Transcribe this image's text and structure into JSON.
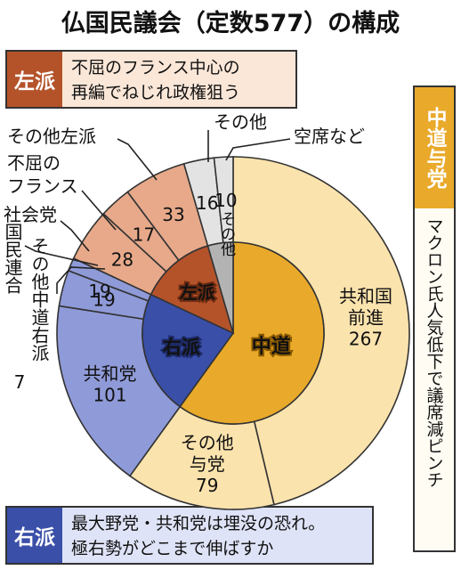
{
  "title": "仏国民議会（定数577）の構成",
  "left_note": {
    "tag": "左派",
    "lines": [
      "不屈のフランス中心の",
      "再編でねじれ政権狙う"
    ]
  },
  "right_note": {
    "tag": "右派",
    "lines": [
      "最大野党・共和党は埋没の恐れ。",
      "極右勢がどこまで伸ばすか"
    ]
  },
  "center_note": {
    "tag": "中道与党",
    "text": "マクロン氏人気低下で議席減ピンチ"
  },
  "colors": {
    "center": "#e9a92a",
    "center_light": "#fbe3ad",
    "left": "#b4532a",
    "left_light": "#e7a98a",
    "right": "#3a4fa8",
    "right_light": "#8f9ad8",
    "other": "#b3b3b3",
    "other_light": "#e3e3e3"
  },
  "chart_data": {
    "type": "pie",
    "total": 577,
    "inner": [
      {
        "name": "中道",
        "value": 346,
        "group": "center"
      },
      {
        "name": "右派",
        "value": 127,
        "group": "right"
      },
      {
        "name": "左派",
        "value": 78,
        "group": "left"
      },
      {
        "name": "その他",
        "value": 26,
        "group": "other"
      }
    ],
    "outer": [
      {
        "name": "共和国前進",
        "value": 267,
        "value_label": "267",
        "group": "center"
      },
      {
        "name": "その他与党",
        "value": 79,
        "value_label": "79",
        "group": "center"
      },
      {
        "name": "共和党",
        "value": 101,
        "value_label": "101",
        "group": "right"
      },
      {
        "name": "その他中道右派",
        "value": 19,
        "value_label": "19",
        "group": "right"
      },
      {
        "name": "国民連合",
        "value": 7,
        "value_label": "7",
        "group": "right"
      },
      {
        "name": "社会党",
        "value": 28,
        "value_label": "28",
        "group": "left"
      },
      {
        "name": "不屈のフランス",
        "value": 17,
        "value_label": "17",
        "group": "left"
      },
      {
        "name": "その他左派",
        "value": 33,
        "value_label": "33",
        "group": "left"
      },
      {
        "name": "その他",
        "value": 16,
        "value_label": "16",
        "group": "other"
      },
      {
        "name": "空席など",
        "value": 10,
        "value_label": "10",
        "group": "other"
      }
    ]
  }
}
